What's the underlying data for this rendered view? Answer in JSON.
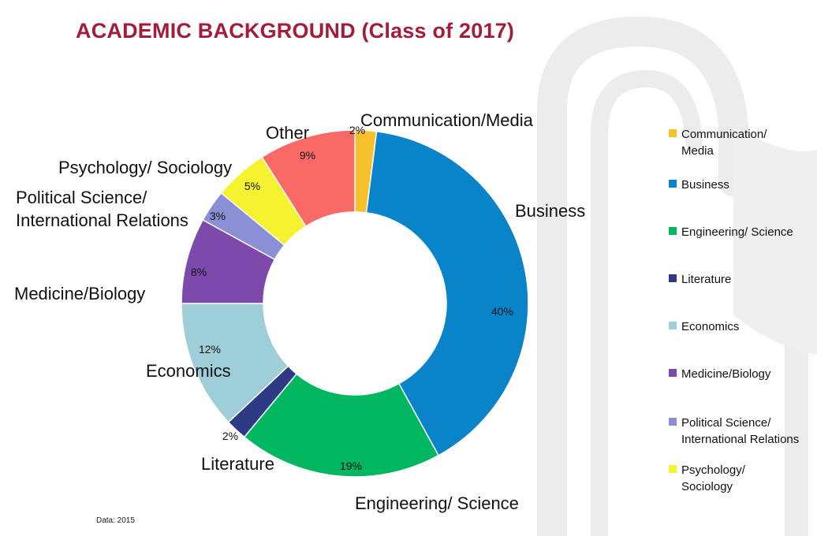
{
  "title": "ACADEMIC BACKGROUND (Class of 2017)",
  "source_note": "Data: 2015",
  "chart_data": {
    "type": "pie",
    "style": "donut",
    "title": "ACADEMIC BACKGROUND (Class of 2017)",
    "slices": [
      {
        "label": "Communication/Media",
        "legend_label": "Communication/ Media",
        "value": 2,
        "value_label": "2%",
        "color": "#f7c12b"
      },
      {
        "label": "Business",
        "legend_label": "Business",
        "value": 40,
        "value_label": "40%",
        "color": "#0a84c9"
      },
      {
        "label": "Engineering/ Science",
        "legend_label": "Engineering/ Science",
        "value": 19,
        "value_label": "19%",
        "color": "#00b660"
      },
      {
        "label": "Literature",
        "legend_label": "Literature",
        "value": 2,
        "value_label": "2%",
        "color": "#2e3a84"
      },
      {
        "label": "Economics",
        "legend_label": "Economics",
        "value": 12,
        "value_label": "12%",
        "color": "#9ecfd8"
      },
      {
        "label": "Medicine/Biology",
        "legend_label": "Medicine/Biology",
        "value": 8,
        "value_label": "8%",
        "color": "#7d4aac"
      },
      {
        "label": "Political Science/\nInternational Relations",
        "legend_label": "Political Science/ International Relations",
        "value": 3,
        "value_label": "3%",
        "color": "#8a8fd6"
      },
      {
        "label": "Psychology/ Sociology",
        "legend_label": "Psychology/ Sociology",
        "value": 5,
        "value_label": "5%",
        "color": "#f6f22f"
      },
      {
        "label": "Other",
        "legend_label": "",
        "value": 9,
        "value_label": "9%",
        "color": "#f96a66"
      }
    ],
    "legend_position": "right"
  }
}
